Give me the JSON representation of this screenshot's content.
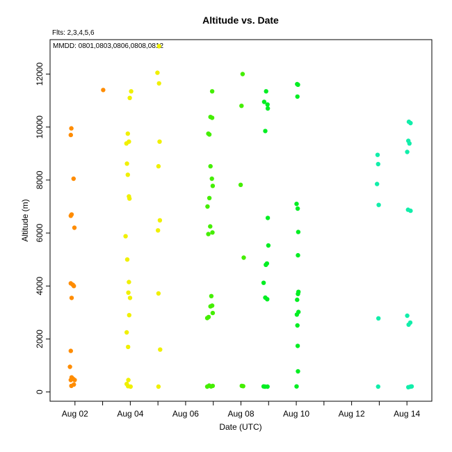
{
  "chart_data": {
    "type": "scatter",
    "title": "Altitude  vs. Date",
    "note_fits": "Flts: 2,3,4,5,6",
    "note_mmdd": "MMDD: 0801,0803,0806,0808,0812",
    "xlabel": "Date (UTC)",
    "ylabel": "Altitude (m)",
    "x_tick_labels": [
      "Aug 02",
      "Aug 04",
      "Aug 06",
      "Aug 08",
      "Aug 10",
      "Aug 12",
      "Aug 14"
    ],
    "x_ticks_day": [
      2,
      3,
      4,
      5,
      6,
      7,
      8,
      9,
      10,
      11,
      12,
      13,
      14
    ],
    "xlim_day": [
      1.1,
      14.9
    ],
    "y_tick_labels": [
      "0",
      "2000",
      "4000",
      "6000",
      "8000",
      "10000",
      "12000"
    ],
    "y_ticks": [
      0,
      2000,
      4000,
      6000,
      8000,
      10000,
      12000
    ],
    "ylim": [
      -350,
      13300
    ],
    "grid": false,
    "series": [
      {
        "color": "#ff8c00",
        "points": [
          [
            1.87,
            9950
          ],
          [
            1.85,
            9700
          ],
          [
            1.95,
            8050
          ],
          [
            1.88,
            6700
          ],
          [
            1.85,
            6650
          ],
          [
            1.98,
            6200
          ],
          [
            1.85,
            4100
          ],
          [
            1.92,
            4050
          ],
          [
            1.96,
            4000
          ],
          [
            1.88,
            3550
          ],
          [
            1.85,
            1550
          ],
          [
            1.82,
            950
          ],
          [
            1.88,
            550
          ],
          [
            1.93,
            500
          ],
          [
            1.99,
            450
          ],
          [
            1.85,
            450
          ],
          [
            1.96,
            280
          ],
          [
            1.87,
            230
          ],
          [
            3.02,
            11400
          ]
        ]
      },
      {
        "color": "#f0f000",
        "points": [
          [
            4.03,
            11350
          ],
          [
            3.98,
            11100
          ],
          [
            3.91,
            9750
          ],
          [
            3.95,
            9450
          ],
          [
            3.86,
            9380
          ],
          [
            3.88,
            8620
          ],
          [
            3.91,
            8200
          ],
          [
            3.95,
            7380
          ],
          [
            3.97,
            7300
          ],
          [
            3.83,
            5880
          ],
          [
            3.89,
            5000
          ],
          [
            3.95,
            4150
          ],
          [
            3.93,
            3750
          ],
          [
            3.99,
            3550
          ],
          [
            3.96,
            2900
          ],
          [
            3.87,
            2250
          ],
          [
            3.92,
            1700
          ],
          [
            3.93,
            450
          ],
          [
            3.87,
            300
          ],
          [
            3.92,
            220
          ],
          [
            4.01,
            200
          ],
          [
            5.04,
            13050
          ],
          [
            4.98,
            12050
          ],
          [
            5.04,
            11650
          ],
          [
            5.06,
            9450
          ],
          [
            5.02,
            8520
          ],
          [
            5.07,
            6480
          ],
          [
            5.0,
            6100
          ],
          [
            5.02,
            3720
          ],
          [
            5.08,
            1600
          ],
          [
            5.02,
            200
          ]
        ]
      },
      {
        "color": "#44ee00",
        "points": [
          [
            6.96,
            11350
          ],
          [
            6.9,
            10380
          ],
          [
            6.96,
            10350
          ],
          [
            6.82,
            9750
          ],
          [
            6.86,
            9720
          ],
          [
            6.9,
            8520
          ],
          [
            6.95,
            8050
          ],
          [
            6.98,
            7780
          ],
          [
            6.86,
            7320
          ],
          [
            6.79,
            7000
          ],
          [
            6.89,
            6250
          ],
          [
            6.97,
            6020
          ],
          [
            6.82,
            5960
          ],
          [
            6.93,
            3620
          ],
          [
            6.96,
            3260
          ],
          [
            6.9,
            3230
          ],
          [
            6.98,
            2980
          ],
          [
            6.83,
            2830
          ],
          [
            6.78,
            2790
          ],
          [
            6.85,
            240
          ],
          [
            6.92,
            210
          ],
          [
            6.98,
            230
          ],
          [
            6.78,
            200
          ],
          [
            8.06,
            12000
          ],
          [
            8.02,
            10800
          ],
          [
            7.99,
            7820
          ],
          [
            8.1,
            5070
          ],
          [
            8.03,
            230
          ],
          [
            8.08,
            220
          ]
        ]
      },
      {
        "color": "#00ee22",
        "points": [
          [
            8.91,
            11350
          ],
          [
            8.84,
            10950
          ],
          [
            8.96,
            10850
          ],
          [
            8.97,
            10700
          ],
          [
            8.88,
            9850
          ],
          [
            8.97,
            6570
          ],
          [
            8.99,
            5530
          ],
          [
            8.94,
            4850
          ],
          [
            8.9,
            4800
          ],
          [
            8.82,
            4120
          ],
          [
            8.88,
            3560
          ],
          [
            8.95,
            3500
          ],
          [
            8.82,
            210
          ],
          [
            8.96,
            200
          ],
          [
            8.87,
            200
          ],
          [
            10.06,
            11600
          ],
          [
            10.03,
            11620
          ],
          [
            10.04,
            11150
          ],
          [
            10.01,
            7100
          ],
          [
            10.05,
            6920
          ],
          [
            10.07,
            6040
          ],
          [
            10.06,
            5160
          ],
          [
            10.08,
            3780
          ],
          [
            10.06,
            3700
          ],
          [
            10.03,
            3480
          ],
          [
            10.08,
            3020
          ],
          [
            10.02,
            2920
          ],
          [
            10.04,
            2510
          ],
          [
            10.05,
            1740
          ],
          [
            10.06,
            780
          ],
          [
            10.01,
            210
          ]
        ]
      },
      {
        "color": "#11eeaa",
        "points": [
          [
            12.94,
            8950
          ],
          [
            12.96,
            8600
          ],
          [
            12.92,
            7850
          ],
          [
            12.98,
            7060
          ],
          [
            12.97,
            2780
          ],
          [
            12.96,
            200
          ],
          [
            14.07,
            10200
          ],
          [
            14.13,
            10150
          ],
          [
            14.05,
            9480
          ],
          [
            14.09,
            9380
          ],
          [
            14.01,
            9060
          ],
          [
            14.04,
            6880
          ],
          [
            14.13,
            6840
          ],
          [
            14.01,
            2880
          ],
          [
            14.12,
            2620
          ],
          [
            14.06,
            2540
          ],
          [
            14.05,
            180
          ],
          [
            14.13,
            200
          ],
          [
            14.17,
            210
          ]
        ]
      }
    ]
  }
}
